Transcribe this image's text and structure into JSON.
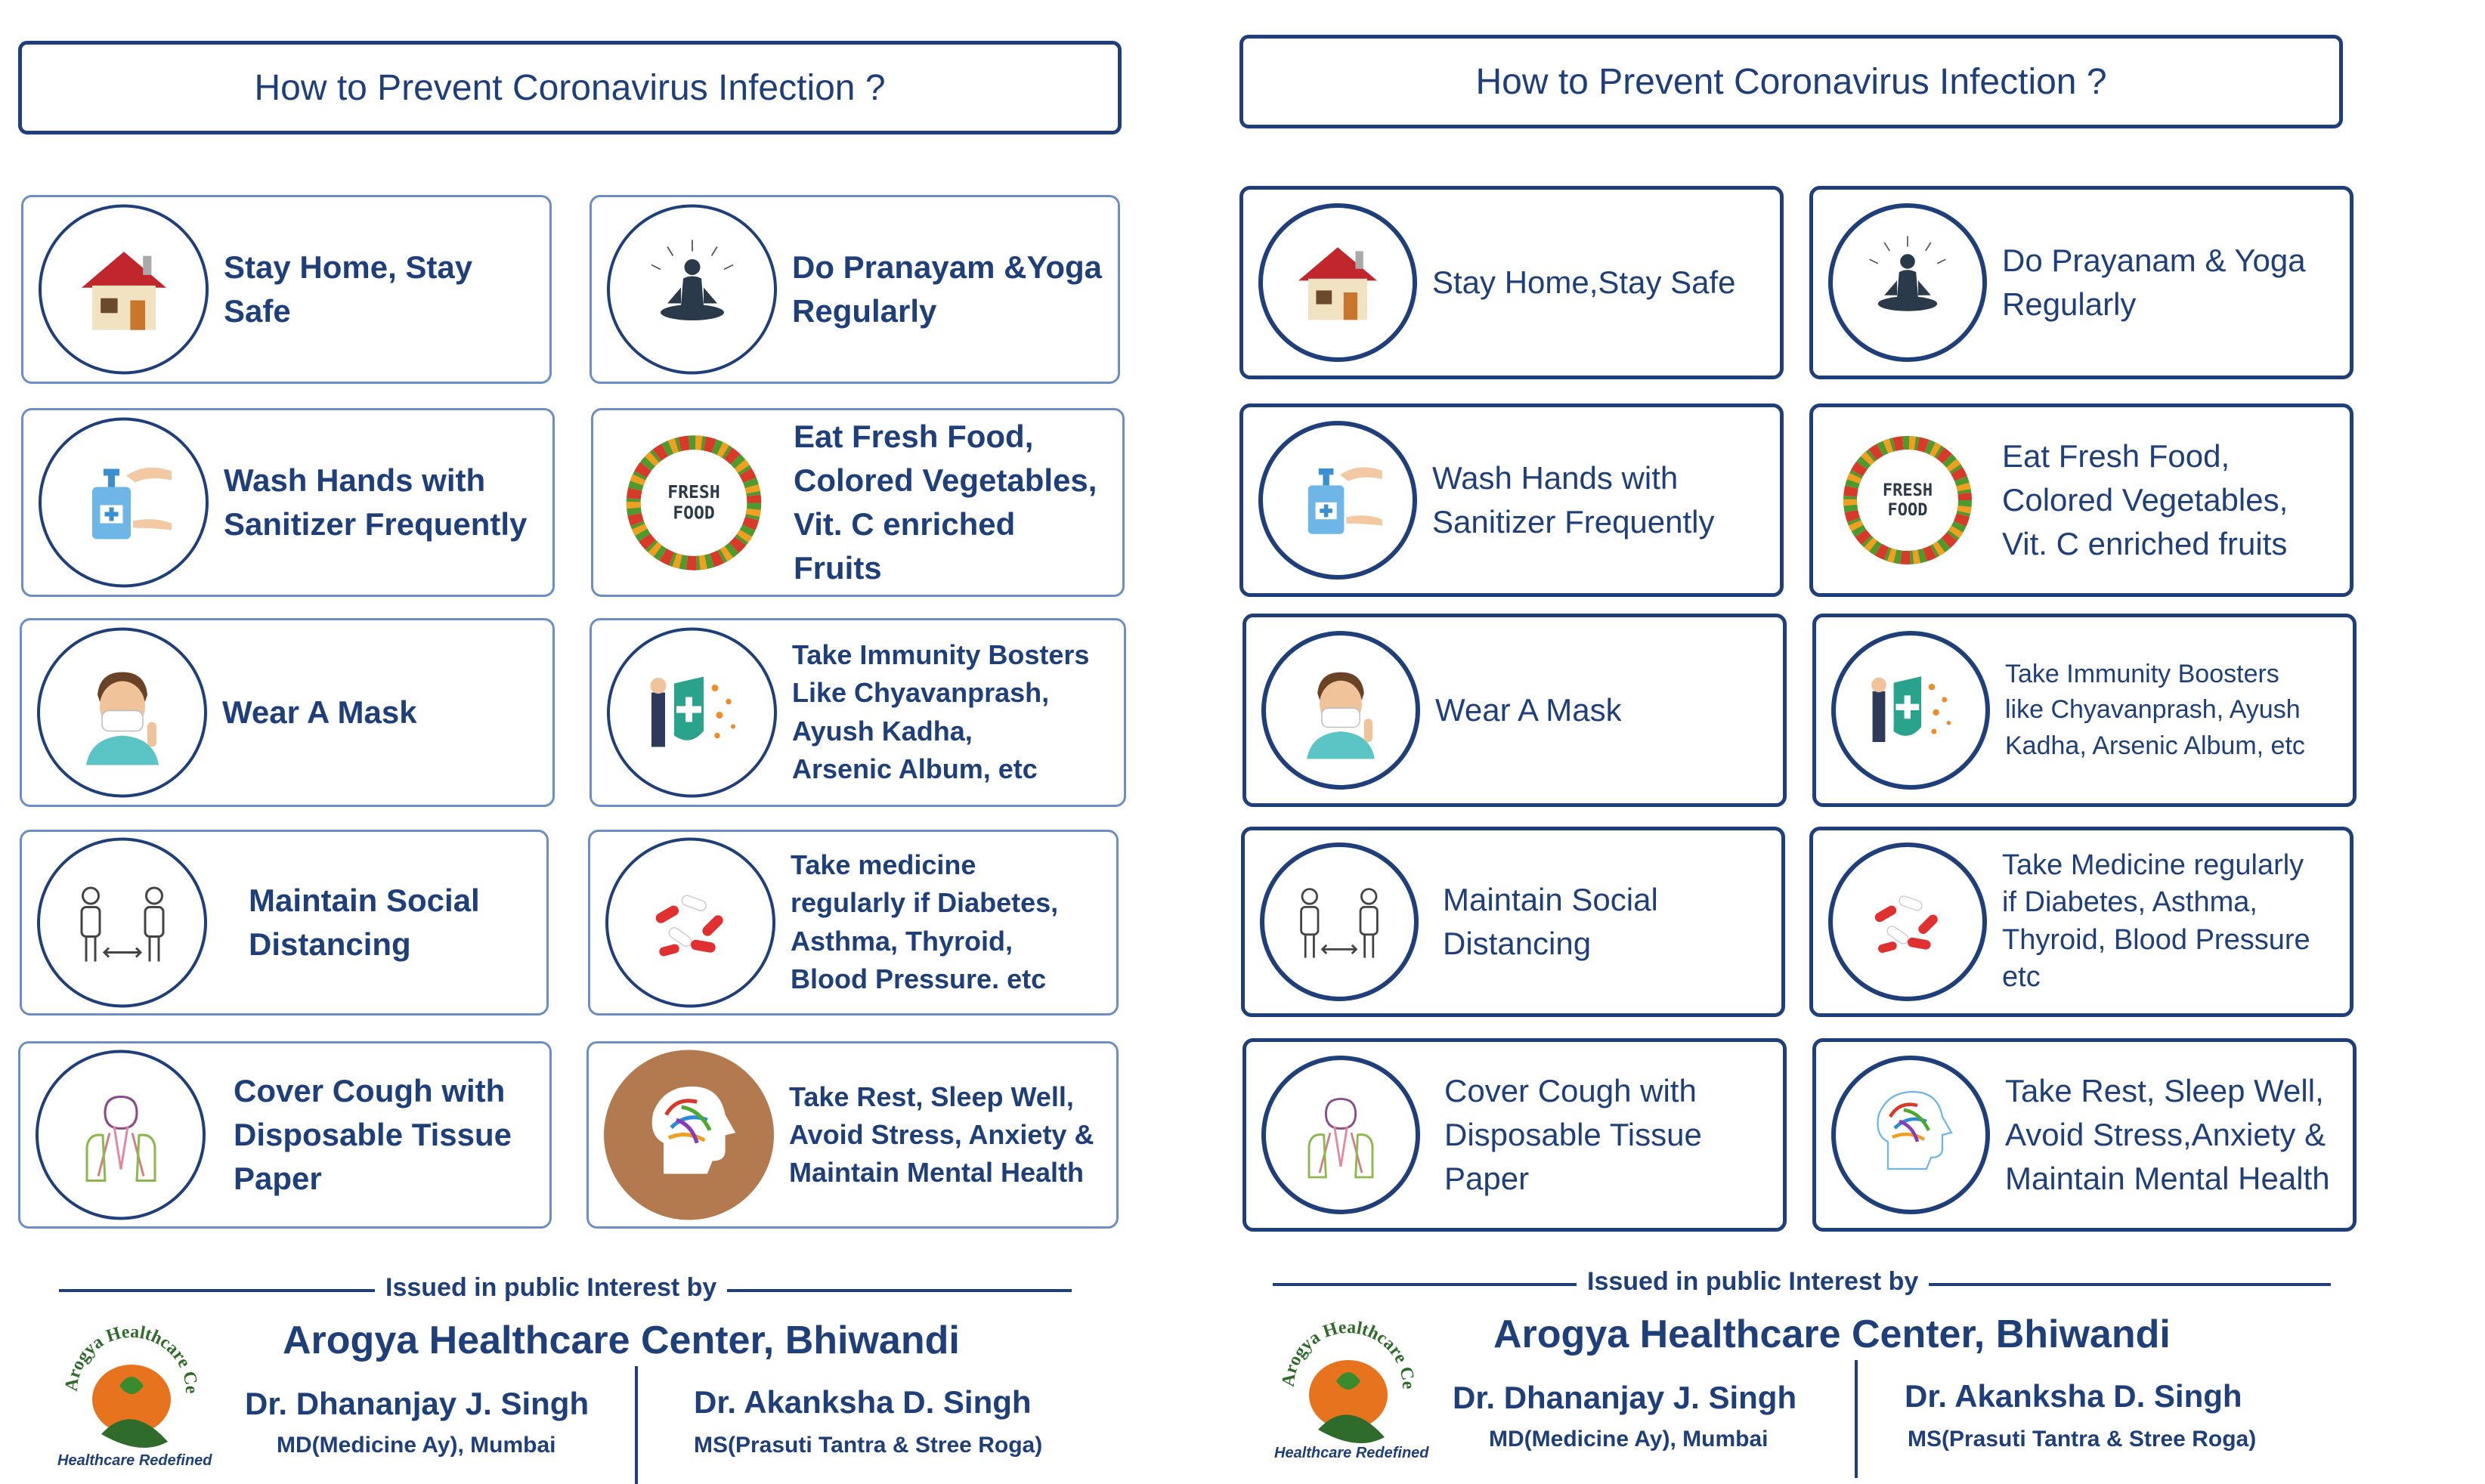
{
  "left": {
    "title": "How to Prevent Coronavirus Infection ?",
    "cards": [
      {
        "icon": "house-icon",
        "text": "Stay Home, Stay Safe"
      },
      {
        "icon": "meditation-icon",
        "text": "Do Pranayam &Yoga\nRegularly"
      },
      {
        "icon": "sanitizer-icon",
        "text": "Wash Hands with\nSanitizer Frequently"
      },
      {
        "icon": "fresh-food-icon",
        "text": "Eat Fresh Food,\nColored Vegetables,\nVit. C enriched Fruits",
        "badge": "FRESH\nFOOD"
      },
      {
        "icon": "mask-icon",
        "text": "Wear A Mask"
      },
      {
        "icon": "shield-icon",
        "text": "Take Immunity Bosters\nLike Chyavanprash,\nAyush Kadha,\nArsenic Album, etc"
      },
      {
        "icon": "distancing-icon",
        "text": "Maintain Social\nDistancing"
      },
      {
        "icon": "pills-icon",
        "text": "Take medicine\nregularly if Diabetes,\nAsthma, Thyroid,\nBlood Pressure. etc"
      },
      {
        "icon": "cough-icon",
        "text": "Cover Cough with\nDisposable Tissue\nPaper"
      },
      {
        "icon": "brain-icon",
        "text": "Take Rest, Sleep Well,\nAvoid Stress, Anxiety &\nMaintain Mental Health"
      }
    ],
    "footer": {
      "issued": "Issued in public Interest by",
      "center": "Arogya Healthcare Center, Bhiwandi",
      "doc1_name": "Dr. Dhananjay J. Singh",
      "doc1_deg": "MD(Medicine Ay), Mumbai",
      "doc2_name": "Dr. Akanksha D. Singh",
      "doc2_deg": "MS(Prasuti Tantra & Stree Roga)",
      "logo_arc": "Arogya Healthcare Center",
      "logo_tag": "Healthcare Redefined"
    }
  },
  "right": {
    "title": "How to Prevent Coronavirus Infection ?",
    "cards": [
      {
        "icon": "house-icon",
        "text": "Stay Home,Stay Safe"
      },
      {
        "icon": "meditation-icon",
        "text": "Do Prayanam & Yoga\nRegularly"
      },
      {
        "icon": "sanitizer-icon",
        "text": "Wash Hands with\nSanitizer Frequently"
      },
      {
        "icon": "fresh-food-icon",
        "text": "Eat Fresh Food,\nColored Vegetables,\nVit. C enriched fruits",
        "badge": "FRESH\nFOOD"
      },
      {
        "icon": "mask-icon",
        "text": "Wear A Mask"
      },
      {
        "icon": "shield-icon",
        "text": "Take Immunity Boosters\nlike Chyavanprash, Ayush\nKadha, Arsenic Album, etc"
      },
      {
        "icon": "distancing-icon",
        "text": "Maintain Social\nDistancing"
      },
      {
        "icon": "pills-icon",
        "text": "Take Medicine regularly\nif Diabetes,  Asthma,\nThyroid, Blood Pressure\netc"
      },
      {
        "icon": "cough-icon",
        "text": "Cover Cough with\nDisposable Tissue\nPaper"
      },
      {
        "icon": "brain-icon",
        "text": "Take Rest, Sleep Well,\nAvoid Stress,Anxiety &\nMaintain Mental Health"
      }
    ],
    "footer": {
      "issued": "Issued in public Interest by",
      "center": "Arogya Healthcare Center, Bhiwandi",
      "doc1_name": "Dr. Dhananjay J. Singh",
      "doc1_deg": "MD(Medicine Ay), Mumbai",
      "doc2_name": "Dr. Akanksha D. Singh",
      "doc2_deg": "MS(Prasuti Tantra & Stree Roga)",
      "logo_arc": "Arogya Healthcare Center",
      "logo_tag": "Healthcare Redefined"
    }
  },
  "colors": {
    "navy": "#1f3f7a",
    "card_border": "#6c8ec4",
    "logo_orange": "#e8731e",
    "logo_green": "#2f6b2a"
  }
}
